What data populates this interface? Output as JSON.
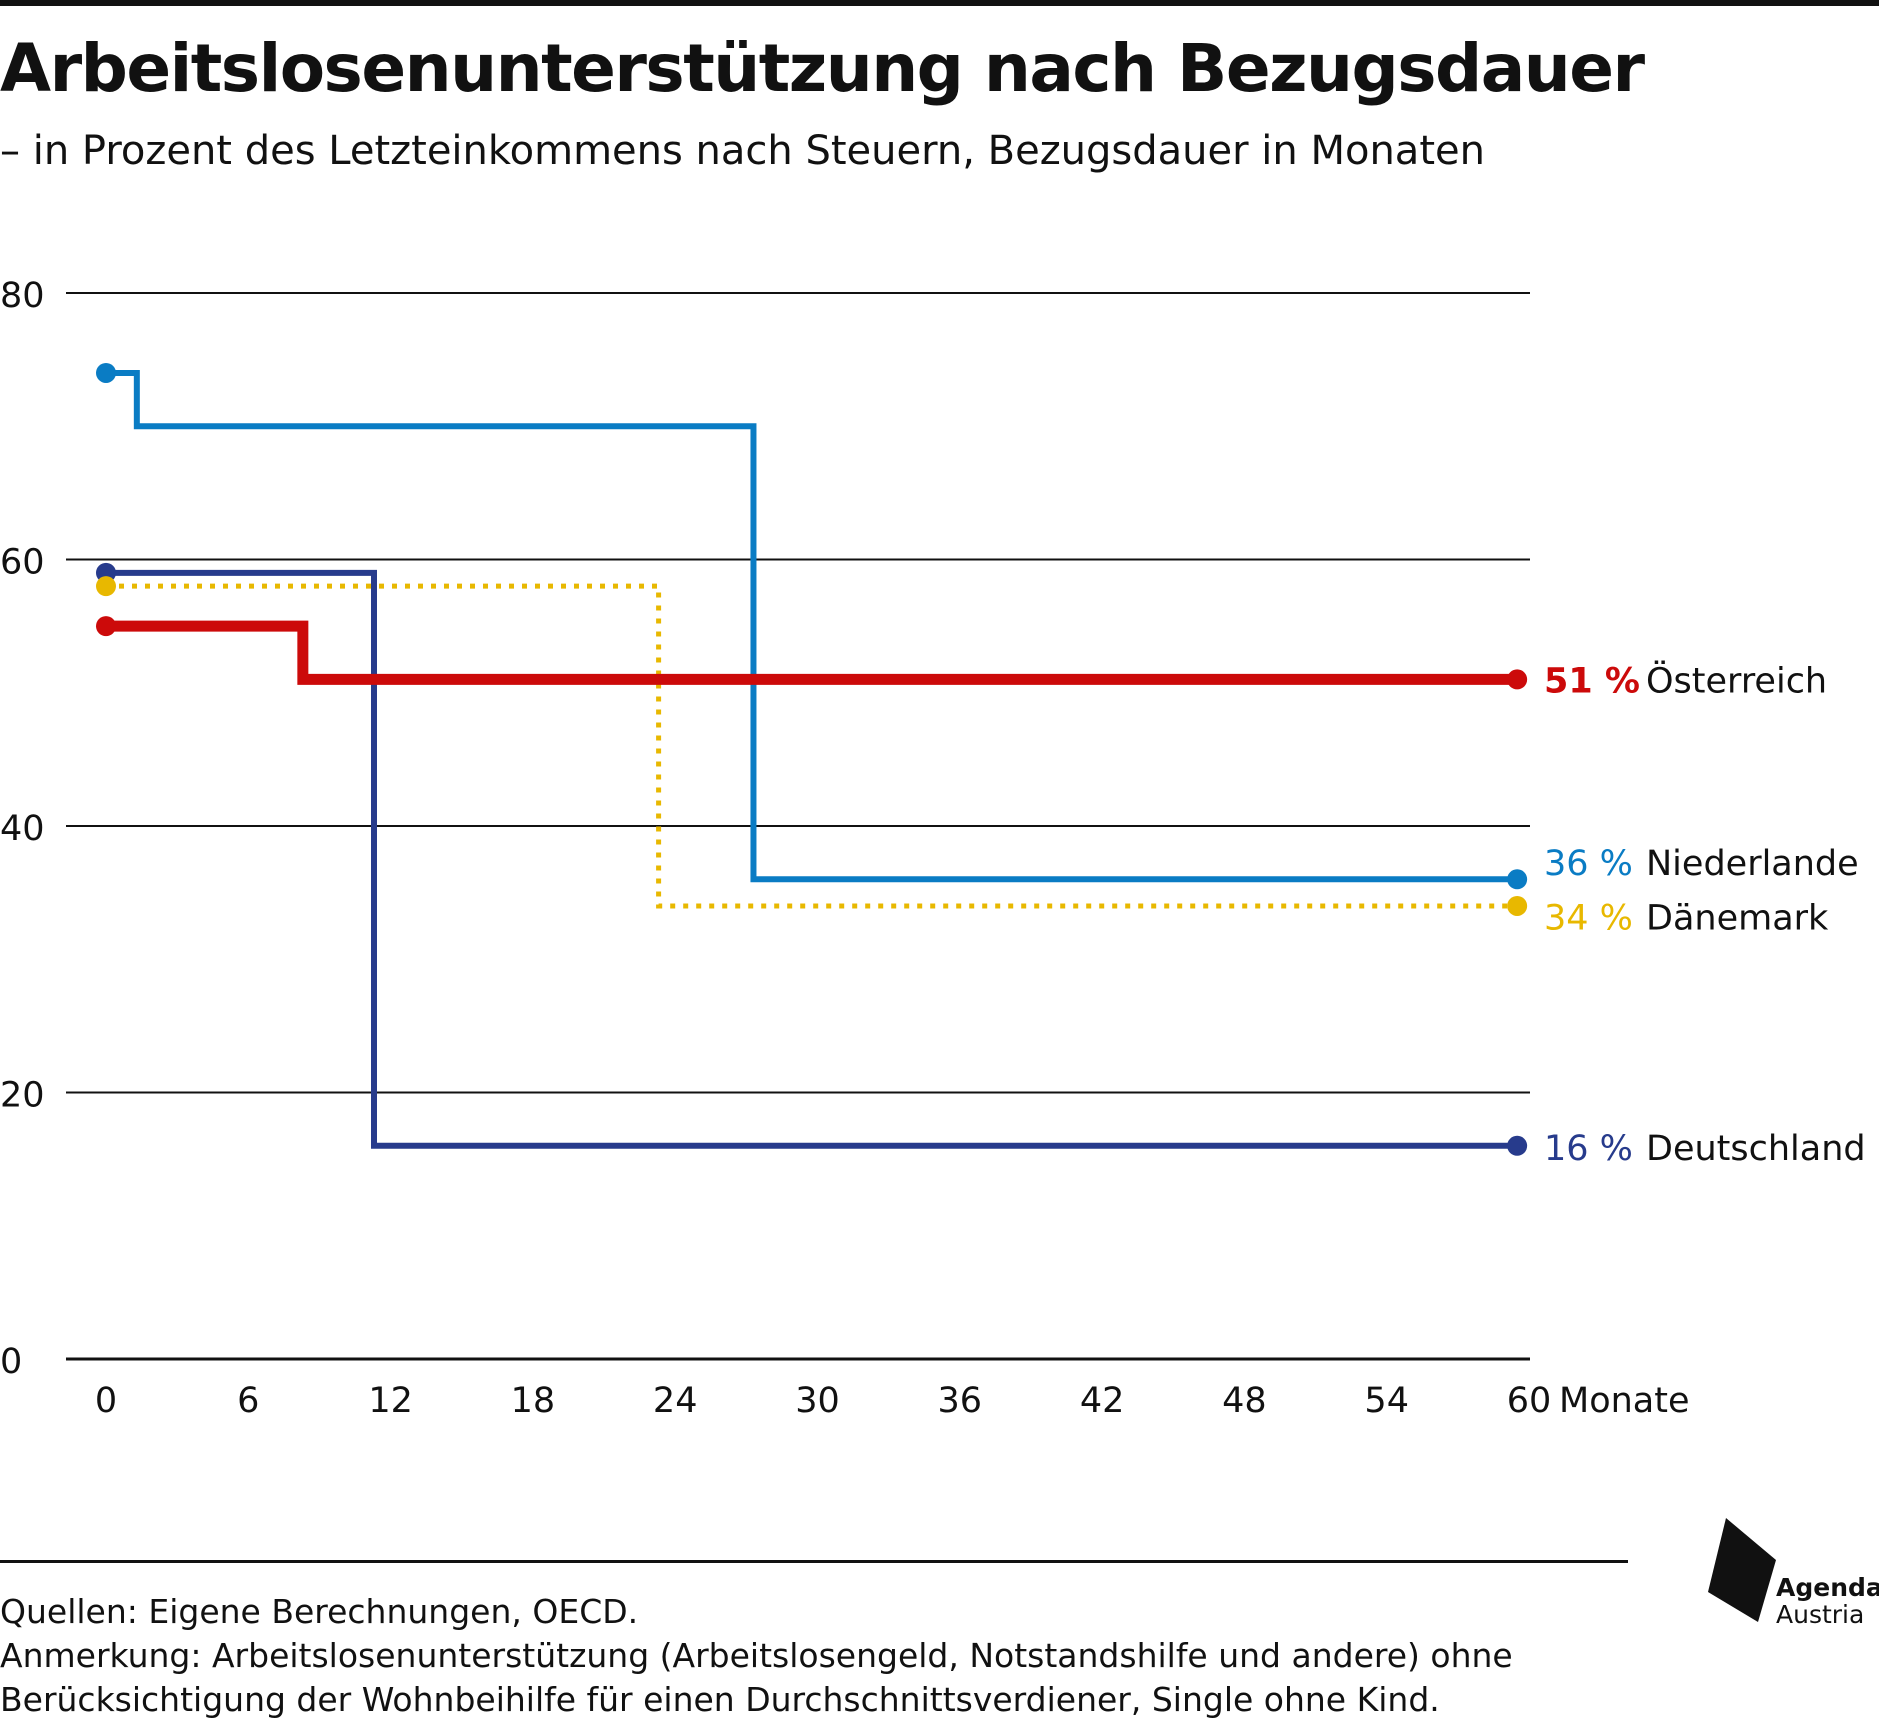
{
  "header": {
    "title": "Arbeitslosenunterstützung nach Bezugsdauer",
    "subtitle": "– in Prozent des Letzteinkommens nach Steuern, Bezugsdauer in Monaten"
  },
  "chart_data": {
    "type": "line",
    "step": true,
    "xlabel": "Monate",
    "ylabel": "",
    "xlim": [
      0,
      60
    ],
    "ylim": [
      0,
      80
    ],
    "x_ticks": [
      0,
      6,
      12,
      18,
      24,
      30,
      36,
      42,
      48,
      54,
      60
    ],
    "y_ticks": [
      0,
      20,
      40,
      60,
      80
    ],
    "grid": "horizontal",
    "series": [
      {
        "name": "Niederlande",
        "color": "#0a7cc4",
        "style": "solid",
        "points": [
          [
            0,
            74
          ],
          [
            1.3,
            74
          ],
          [
            1.3,
            70
          ],
          [
            27.3,
            70
          ],
          [
            27.3,
            36
          ],
          [
            59.5,
            36
          ]
        ],
        "end_label": "36 %"
      },
      {
        "name": "Deutschland",
        "color": "#273b8c",
        "style": "solid",
        "points": [
          [
            0,
            59
          ],
          [
            11.3,
            59
          ],
          [
            11.3,
            16
          ],
          [
            59.5,
            16
          ]
        ],
        "end_label": "16 %"
      },
      {
        "name": "Dänemark",
        "color": "#e8b800",
        "style": "dotted",
        "points": [
          [
            0,
            58
          ],
          [
            23.3,
            58
          ],
          [
            23.3,
            34
          ],
          [
            59.5,
            34
          ]
        ],
        "end_label": "34 %"
      },
      {
        "name": "Österreich",
        "color": "#cc0a0a",
        "style": "bold",
        "points": [
          [
            0,
            55
          ],
          [
            8.3,
            55
          ],
          [
            8.3,
            51
          ],
          [
            59.5,
            51
          ]
        ],
        "end_label": "51 %"
      }
    ]
  },
  "footer": {
    "source": "Quellen: Eigene Berechnungen, OECD.",
    "note_line1": "Anmerkung: Arbeitslosenunterstützung (Arbeitslosengeld, Notstandshilfe und andere) ohne",
    "note_line2": "Berücksichtigung der Wohnbeihilfe für einen Durchschnittsverdiener, Single ohne Kind."
  },
  "logo": {
    "line1": "Agenda",
    "line2": "Austria"
  }
}
